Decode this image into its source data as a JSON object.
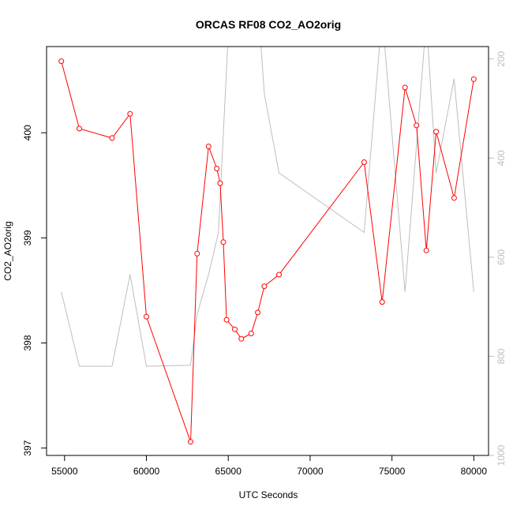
{
  "chart_data": {
    "type": "line",
    "title": "ORCAS RF08 CO2_AO2orig",
    "xlabel": "UTC Seconds",
    "ylabel": "CO2_AO2orig",
    "xlim": [
      53900,
      80900
    ],
    "ylim": [
      396.93,
      400.82
    ],
    "y2lim": [
      1000,
      175
    ],
    "y2_reversed": true,
    "x_ticks": [
      55000,
      60000,
      65000,
      70000,
      75000,
      80000
    ],
    "y_ticks": [
      397,
      398,
      399,
      400
    ],
    "y2_ticks": [
      200,
      400,
      600,
      800,
      1000
    ],
    "grid": false,
    "series": [
      {
        "color": "#ff0000",
        "axis": "left",
        "markers": true,
        "x": [
          54800,
          55900,
          57900,
          59000,
          60000,
          62700,
          63100,
          63800,
          64300,
          64500,
          64700,
          64900,
          65400,
          65800,
          66400,
          66800,
          67200,
          68100,
          73300,
          74400,
          75800,
          76500,
          77100,
          77700,
          78800,
          80000
        ],
        "y": [
          400.68,
          400.04,
          399.95,
          400.18,
          398.25,
          397.06,
          398.85,
          399.87,
          399.66,
          399.52,
          398.96,
          398.22,
          398.13,
          398.04,
          398.09,
          398.29,
          398.54,
          398.65,
          399.72,
          398.39,
          400.43,
          400.07,
          398.88,
          400.01,
          399.38,
          400.51
        ]
      },
      {
        "color": "#bebebe",
        "axis": "right",
        "markers": false,
        "x": [
          54800,
          55900,
          57900,
          59000,
          60000,
          62700,
          63100,
          63800,
          64400,
          65000,
          65700,
          66400,
          66800,
          67200,
          68100,
          73300,
          74400,
          75800,
          77100,
          77700,
          78800,
          80000
        ],
        "y": [
          670,
          820,
          820,
          635,
          820,
          818,
          715,
          635,
          550,
          150,
          140,
          155,
          80,
          270,
          430,
          550,
          110,
          670,
          120,
          430,
          240,
          670
        ]
      }
    ]
  }
}
